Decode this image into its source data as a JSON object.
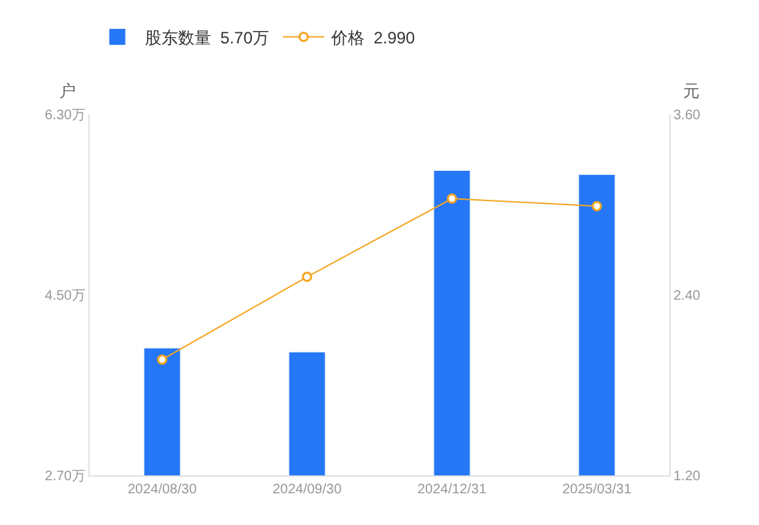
{
  "chart_data": {
    "type": "bar",
    "categories": [
      "2024/08/30",
      "2024/09/30",
      "2024/12/31",
      "2025/03/31"
    ],
    "ylabel": "户",
    "y2label": "元",
    "series": [
      {
        "name": "股东数量  5.70万",
        "color": "#2577f7",
        "values": [
          3.97,
          3.93,
          5.74,
          5.7
        ]
      },
      {
        "name": "价格  2.990",
        "type": "line",
        "axis": "y2",
        "color": "#f5a623",
        "marker": "circle",
        "values": [
          1.97,
          2.52,
          3.04,
          2.99
        ]
      }
    ],
    "ylim": [
      2.7,
      6.3
    ],
    "yticks": [
      {
        "value": 2.7,
        "label": "2.70万"
      },
      {
        "value": 4.5,
        "label": "4.50万"
      },
      {
        "value": 6.3,
        "label": "6.30万"
      }
    ],
    "y2lim": [
      1.2,
      3.6
    ],
    "y2ticks": [
      {
        "value": 1.2,
        "label": "1.20"
      },
      {
        "value": 2.4,
        "label": "2.40"
      },
      {
        "value": 3.6,
        "label": "3.60"
      }
    ],
    "legend": "top left"
  }
}
